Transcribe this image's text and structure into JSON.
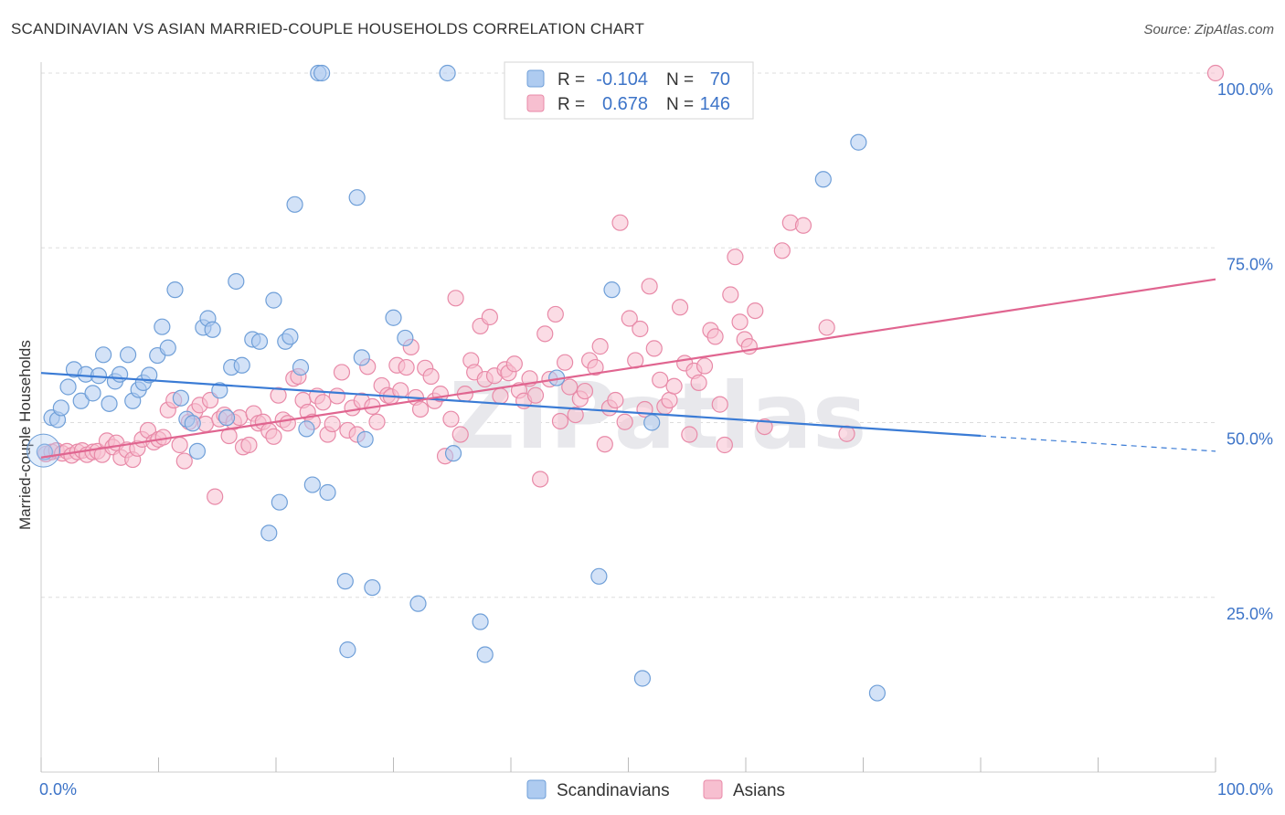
{
  "title": "SCANDINAVIAN VS ASIAN MARRIED-COUPLE HOUSEHOLDS CORRELATION CHART",
  "source": "Source: ZipAtlas.com",
  "watermark": "ZIPatlas",
  "colors": {
    "scandinavian_fill": "#aecbf0",
    "scandinavian_stroke": "#6f9fd8",
    "scandinavian_line": "#3a7bd5",
    "asian_fill": "#f7bfd0",
    "asian_stroke": "#e88aa8",
    "asian_line": "#e06590",
    "value_text": "#3d74c8",
    "grid": "#dddddd"
  },
  "legend": {
    "rows": [
      {
        "r_label": "R =",
        "r_value": "-0.104",
        "n_label": "N =",
        "n_value": "70"
      },
      {
        "r_label": "R =",
        "r_value": "0.678",
        "n_label": "N =",
        "n_value": "146"
      }
    ],
    "bottom": [
      "Scandinavians",
      "Asians"
    ]
  },
  "chart_data": {
    "type": "scatter",
    "title": "SCANDINAVIAN VS ASIAN MARRIED-COUPLE HOUSEHOLDS CORRELATION CHART",
    "xlabel": "",
    "ylabel": "Married-couple Households",
    "xlim": [
      0,
      100
    ],
    "ylim": [
      0,
      100
    ],
    "x_tick_labels": [
      "0.0%",
      "100.0%"
    ],
    "y_tick_labels": [
      "100.0%",
      "75.0%",
      "50.0%",
      "25.0%"
    ],
    "y_ticks": [
      100,
      75,
      50,
      25
    ],
    "grid": true,
    "legend_position": "top-center",
    "series": [
      {
        "name": "Scandinavians",
        "r": -0.104,
        "n": 70,
        "trend": {
          "x": [
            0,
            80
          ],
          "y": [
            57.1,
            48.1
          ],
          "dashed_x": [
            80,
            100
          ],
          "dashed_y": [
            48.1,
            45.9
          ]
        },
        "points": [
          [
            0.3,
            45.8
          ],
          [
            0.9,
            50.7
          ],
          [
            1.4,
            50.4
          ],
          [
            1.7,
            52.1
          ],
          [
            2.3,
            55.1
          ],
          [
            2.8,
            57.6
          ],
          [
            3.4,
            53.1
          ],
          [
            3.8,
            56.9
          ],
          [
            4.4,
            54.2
          ],
          [
            4.9,
            56.7
          ],
          [
            5.3,
            59.7
          ],
          [
            5.8,
            52.7
          ],
          [
            6.3,
            55.9
          ],
          [
            6.7,
            56.9
          ],
          [
            7.4,
            59.7
          ],
          [
            7.8,
            53.1
          ],
          [
            8.3,
            54.7
          ],
          [
            8.7,
            55.7
          ],
          [
            9.2,
            56.8
          ],
          [
            9.9,
            59.6
          ],
          [
            10.3,
            63.7
          ],
          [
            10.8,
            60.7
          ],
          [
            11.4,
            69.0
          ],
          [
            11.9,
            53.5
          ],
          [
            12.4,
            50.5
          ],
          [
            12.9,
            49.9
          ],
          [
            13.3,
            45.9
          ],
          [
            13.8,
            63.6
          ],
          [
            14.2,
            64.9
          ],
          [
            14.6,
            63.3
          ],
          [
            15.2,
            54.6
          ],
          [
            15.8,
            50.7
          ],
          [
            16.2,
            57.9
          ],
          [
            16.6,
            70.2
          ],
          [
            17.1,
            58.2
          ],
          [
            18.0,
            61.9
          ],
          [
            18.6,
            61.6
          ],
          [
            19.4,
            34.2
          ],
          [
            19.8,
            67.5
          ],
          [
            20.3,
            38.6
          ],
          [
            20.8,
            61.6
          ],
          [
            21.2,
            62.3
          ],
          [
            21.6,
            81.2
          ],
          [
            22.1,
            57.9
          ],
          [
            22.6,
            49.1
          ],
          [
            23.1,
            41.1
          ],
          [
            23.6,
            100.0
          ],
          [
            23.9,
            100.0
          ],
          [
            24.4,
            40.0
          ],
          [
            25.9,
            27.3
          ],
          [
            26.1,
            17.5
          ],
          [
            26.9,
            82.2
          ],
          [
            27.3,
            59.3
          ],
          [
            27.6,
            47.6
          ],
          [
            28.2,
            26.4
          ],
          [
            30.0,
            65.0
          ],
          [
            31.0,
            62.1
          ],
          [
            32.1,
            24.1
          ],
          [
            34.6,
            100.0
          ],
          [
            35.1,
            45.6
          ],
          [
            37.4,
            21.5
          ],
          [
            37.8,
            16.8
          ],
          [
            43.9,
            56.4
          ],
          [
            47.5,
            28.0
          ],
          [
            48.6,
            69.0
          ],
          [
            51.2,
            13.4
          ],
          [
            52.0,
            50.0
          ],
          [
            66.6,
            84.8
          ],
          [
            69.6,
            90.1
          ],
          [
            71.2,
            11.3
          ]
        ]
      },
      {
        "name": "Asians",
        "r": 0.678,
        "n": 146,
        "trend": {
          "x": [
            0,
            100
          ],
          "y": [
            45.0,
            70.5
          ]
        },
        "points": [
          [
            0.4,
            45.5
          ],
          [
            0.9,
            45.8
          ],
          [
            1.3,
            46.0
          ],
          [
            1.8,
            45.6
          ],
          [
            2.2,
            45.9
          ],
          [
            2.6,
            45.3
          ],
          [
            3.1,
            45.8
          ],
          [
            3.5,
            46.0
          ],
          [
            3.9,
            45.4
          ],
          [
            4.4,
            45.8
          ],
          [
            4.8,
            45.9
          ],
          [
            5.2,
            45.4
          ],
          [
            5.6,
            47.4
          ],
          [
            6.1,
            46.5
          ],
          [
            6.4,
            47.1
          ],
          [
            6.8,
            45.0
          ],
          [
            7.3,
            46.1
          ],
          [
            7.8,
            44.7
          ],
          [
            8.2,
            46.3
          ],
          [
            8.6,
            47.6
          ],
          [
            9.1,
            48.9
          ],
          [
            9.6,
            47.2
          ],
          [
            10.0,
            47.6
          ],
          [
            10.4,
            47.9
          ],
          [
            10.8,
            51.8
          ],
          [
            11.3,
            53.2
          ],
          [
            11.8,
            46.8
          ],
          [
            12.2,
            44.5
          ],
          [
            12.6,
            50.1
          ],
          [
            13.1,
            51.6
          ],
          [
            13.5,
            52.5
          ],
          [
            14.0,
            49.8
          ],
          [
            14.4,
            53.2
          ],
          [
            14.8,
            39.4
          ],
          [
            15.2,
            50.5
          ],
          [
            15.6,
            51.1
          ],
          [
            16.0,
            48.1
          ],
          [
            16.4,
            50.1
          ],
          [
            16.9,
            50.7
          ],
          [
            17.2,
            46.5
          ],
          [
            17.7,
            46.8
          ],
          [
            18.1,
            51.3
          ],
          [
            18.5,
            49.9
          ],
          [
            18.9,
            50.1
          ],
          [
            19.4,
            48.8
          ],
          [
            19.8,
            48.0
          ],
          [
            20.2,
            53.9
          ],
          [
            20.6,
            50.4
          ],
          [
            21.0,
            49.9
          ],
          [
            21.5,
            56.3
          ],
          [
            21.9,
            56.6
          ],
          [
            22.3,
            53.2
          ],
          [
            22.7,
            51.5
          ],
          [
            23.1,
            50.1
          ],
          [
            23.5,
            53.8
          ],
          [
            24.0,
            52.9
          ],
          [
            24.4,
            48.3
          ],
          [
            24.8,
            49.8
          ],
          [
            25.2,
            53.8
          ],
          [
            25.6,
            57.2
          ],
          [
            26.1,
            48.9
          ],
          [
            26.5,
            52.1
          ],
          [
            26.9,
            48.3
          ],
          [
            27.3,
            53.1
          ],
          [
            27.8,
            58.0
          ],
          [
            28.2,
            52.3
          ],
          [
            28.6,
            50.1
          ],
          [
            29.0,
            55.3
          ],
          [
            29.5,
            53.9
          ],
          [
            29.8,
            53.7
          ],
          [
            30.3,
            58.2
          ],
          [
            30.6,
            54.6
          ],
          [
            31.1,
            57.9
          ],
          [
            31.5,
            60.8
          ],
          [
            31.9,
            53.6
          ],
          [
            32.3,
            51.9
          ],
          [
            32.7,
            57.8
          ],
          [
            33.2,
            56.6
          ],
          [
            33.5,
            53.1
          ],
          [
            34.0,
            54.1
          ],
          [
            34.4,
            45.2
          ],
          [
            34.9,
            50.5
          ],
          [
            35.3,
            67.8
          ],
          [
            35.7,
            48.3
          ],
          [
            36.1,
            54.1
          ],
          [
            36.6,
            58.9
          ],
          [
            36.9,
            57.2
          ],
          [
            37.4,
            63.8
          ],
          [
            37.8,
            56.2
          ],
          [
            38.2,
            65.1
          ],
          [
            38.6,
            56.7
          ],
          [
            39.1,
            53.8
          ],
          [
            39.5,
            57.6
          ],
          [
            39.8,
            57.1
          ],
          [
            40.3,
            58.4
          ],
          [
            40.7,
            54.6
          ],
          [
            41.1,
            53.1
          ],
          [
            41.6,
            56.3
          ],
          [
            42.1,
            53.9
          ],
          [
            42.5,
            41.9
          ],
          [
            42.9,
            62.7
          ],
          [
            43.3,
            56.2
          ],
          [
            43.8,
            65.5
          ],
          [
            44.2,
            50.2
          ],
          [
            44.6,
            58.6
          ],
          [
            45.0,
            55.1
          ],
          [
            45.5,
            51.1
          ],
          [
            45.9,
            53.4
          ],
          [
            46.3,
            54.5
          ],
          [
            46.7,
            58.9
          ],
          [
            47.2,
            57.9
          ],
          [
            47.6,
            60.9
          ],
          [
            48.0,
            46.9
          ],
          [
            48.4,
            52.1
          ],
          [
            48.9,
            53.2
          ],
          [
            49.3,
            78.6
          ],
          [
            49.7,
            50.1
          ],
          [
            50.1,
            64.9
          ],
          [
            50.6,
            58.9
          ],
          [
            51.0,
            63.4
          ],
          [
            51.4,
            51.9
          ],
          [
            51.8,
            69.5
          ],
          [
            52.2,
            60.6
          ],
          [
            52.7,
            56.1
          ],
          [
            53.1,
            52.3
          ],
          [
            53.5,
            53.2
          ],
          [
            53.9,
            55.2
          ],
          [
            54.4,
            66.5
          ],
          [
            54.8,
            58.5
          ],
          [
            55.2,
            48.3
          ],
          [
            55.6,
            57.4
          ],
          [
            56.0,
            55.7
          ],
          [
            56.5,
            58.1
          ],
          [
            57.0,
            63.2
          ],
          [
            57.4,
            62.3
          ],
          [
            57.8,
            52.6
          ],
          [
            58.2,
            46.8
          ],
          [
            58.7,
            68.3
          ],
          [
            59.1,
            73.7
          ],
          [
            59.5,
            64.4
          ],
          [
            59.9,
            61.9
          ],
          [
            60.3,
            60.9
          ],
          [
            60.8,
            66.0
          ],
          [
            61.6,
            49.4
          ],
          [
            63.1,
            74.6
          ],
          [
            63.8,
            78.6
          ],
          [
            64.9,
            78.2
          ],
          [
            66.9,
            63.6
          ],
          [
            68.6,
            48.4
          ],
          [
            100.0,
            100.0
          ]
        ]
      }
    ]
  }
}
